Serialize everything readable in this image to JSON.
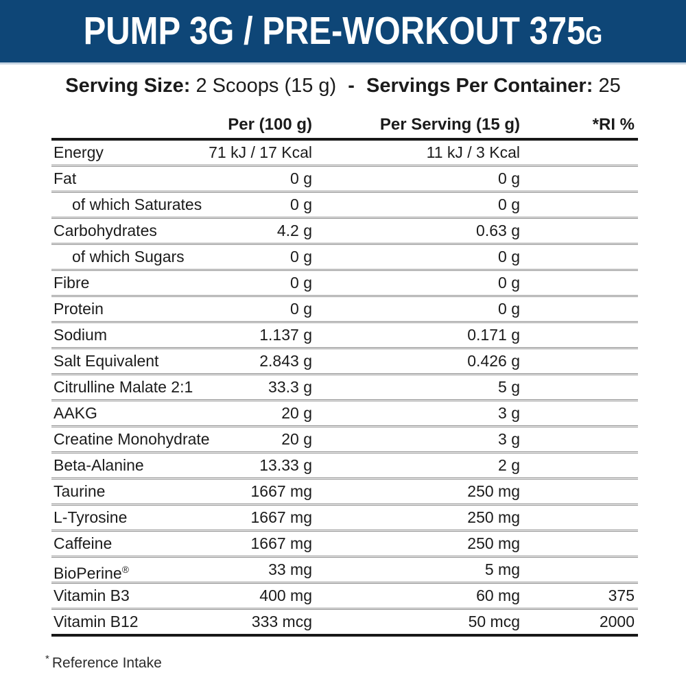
{
  "header": {
    "title_main": "PUMP 3G / PRE-WORKOUT 375",
    "title_unit": "G"
  },
  "serving": {
    "size_label": "Serving Size:",
    "size_value": "2 Scoops (15 g)",
    "separator": "-",
    "container_label": "Servings Per Container:",
    "count_value": "25"
  },
  "table": {
    "columns": [
      "",
      "Per (100 g)",
      "Per Serving (15 g)",
      "*RI %"
    ],
    "rows": [
      {
        "label": "Energy",
        "per_100g": "71 kJ / 17 Kcal",
        "per_serving": "11 kJ / 3 Kcal",
        "ri": "",
        "indent": false
      },
      {
        "label": "Fat",
        "per_100g": "0 g",
        "per_serving": "0 g",
        "ri": "",
        "indent": false
      },
      {
        "label": "of which Saturates",
        "per_100g": "0 g",
        "per_serving": "0 g",
        "ri": "",
        "indent": true
      },
      {
        "label": "Carbohydrates",
        "per_100g": "4.2 g",
        "per_serving": "0.63 g",
        "ri": "",
        "indent": false
      },
      {
        "label": "of which Sugars",
        "per_100g": "0 g",
        "per_serving": "0 g",
        "ri": "",
        "indent": true
      },
      {
        "label": "Fibre",
        "per_100g": "0 g",
        "per_serving": "0 g",
        "ri": "",
        "indent": false
      },
      {
        "label": "Protein",
        "per_100g": "0 g",
        "per_serving": "0 g",
        "ri": "",
        "indent": false
      },
      {
        "label": "Sodium",
        "per_100g": "1.137 g",
        "per_serving": "0.171 g",
        "ri": "",
        "indent": false
      },
      {
        "label": "Salt Equivalent",
        "per_100g": "2.843 g",
        "per_serving": "0.426 g",
        "ri": "",
        "indent": false
      },
      {
        "label": "Citrulline Malate 2:1",
        "per_100g": "33.3 g",
        "per_serving": "5 g",
        "ri": "",
        "indent": false
      },
      {
        "label": "AAKG",
        "per_100g": "20 g",
        "per_serving": "3 g",
        "ri": "",
        "indent": false
      },
      {
        "label": "Creatine Monohydrate",
        "per_100g": "20 g",
        "per_serving": "3 g",
        "ri": "",
        "indent": false
      },
      {
        "label": "Beta-Alanine",
        "per_100g": "13.33 g",
        "per_serving": "2 g",
        "ri": "",
        "indent": false
      },
      {
        "label": "Taurine",
        "per_100g": "1667 mg",
        "per_serving": "250 mg",
        "ri": "",
        "indent": false
      },
      {
        "label": "L-Tyrosine",
        "per_100g": "1667 mg",
        "per_serving": "250 mg",
        "ri": "",
        "indent": false
      },
      {
        "label": "Caffeine",
        "per_100g": "1667 mg",
        "per_serving": "250 mg",
        "ri": "",
        "indent": false
      },
      {
        "label": "BioPerine",
        "label_suffix": "®",
        "per_100g": "33 mg",
        "per_serving": "5 mg",
        "ri": "",
        "indent": false
      },
      {
        "label": "Vitamin B3",
        "per_100g": "400 mg",
        "per_serving": "60 mg",
        "ri": "375",
        "indent": false
      },
      {
        "label": "Vitamin B12",
        "per_100g": "333 mcg",
        "per_serving": "50 mcg",
        "ri": "2000",
        "indent": false
      }
    ]
  },
  "footnote": {
    "marker": "*",
    "text": "Reference Intake"
  },
  "colors": {
    "header_bg": "#0e4677",
    "header_underline": "#c6d4e2",
    "title_text": "#ffffff",
    "body_text": "#1b1b1b",
    "thick_rule": "#181818",
    "thin_rule": "#8d8d8d"
  }
}
